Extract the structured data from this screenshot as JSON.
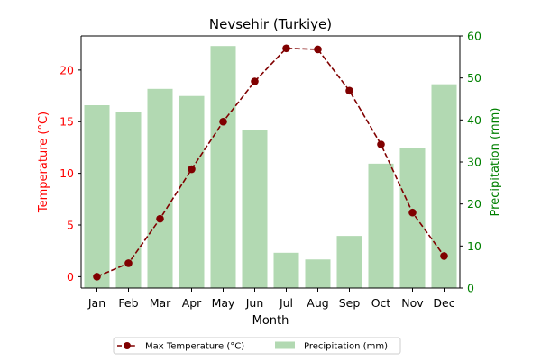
{
  "chart_data": {
    "type": "bar+line",
    "title": "Nevsehir (Turkiye)",
    "xlabel": "Month",
    "categories": [
      "Jan",
      "Feb",
      "Mar",
      "Apr",
      "May",
      "Jun",
      "Jul",
      "Aug",
      "Sep",
      "Oct",
      "Nov",
      "Dec"
    ],
    "left_axis": {
      "label": "Temperature (°C)",
      "color": "#ff0000",
      "ylim": [
        -1.1,
        23.3
      ],
      "ticks": [
        0,
        5,
        10,
        15,
        20
      ]
    },
    "right_axis": {
      "label": "Precipitation (mm)",
      "color": "#008000",
      "ylim": [
        0,
        60
      ],
      "ticks": [
        0,
        10,
        20,
        30,
        40,
        50,
        60
      ]
    },
    "series": [
      {
        "name": "Max Temperature (°C)",
        "kind": "line",
        "axis": "left",
        "color": "#800000",
        "line_style": "dashed",
        "marker": "circle",
        "values": [
          0.0,
          1.3,
          5.6,
          10.4,
          15.0,
          18.9,
          22.1,
          22.0,
          18.0,
          12.8,
          6.2,
          2.0
        ]
      },
      {
        "name": "Precipitation (mm)",
        "kind": "bar",
        "axis": "right",
        "color": "#b2d9b2",
        "values": [
          43.5,
          41.8,
          47.4,
          45.7,
          57.6,
          37.5,
          8.4,
          6.8,
          12.4,
          29.6,
          33.4,
          48.5
        ]
      }
    ],
    "legend": {
      "placement": "bottom-center",
      "columns": 2
    },
    "grid": false
  }
}
